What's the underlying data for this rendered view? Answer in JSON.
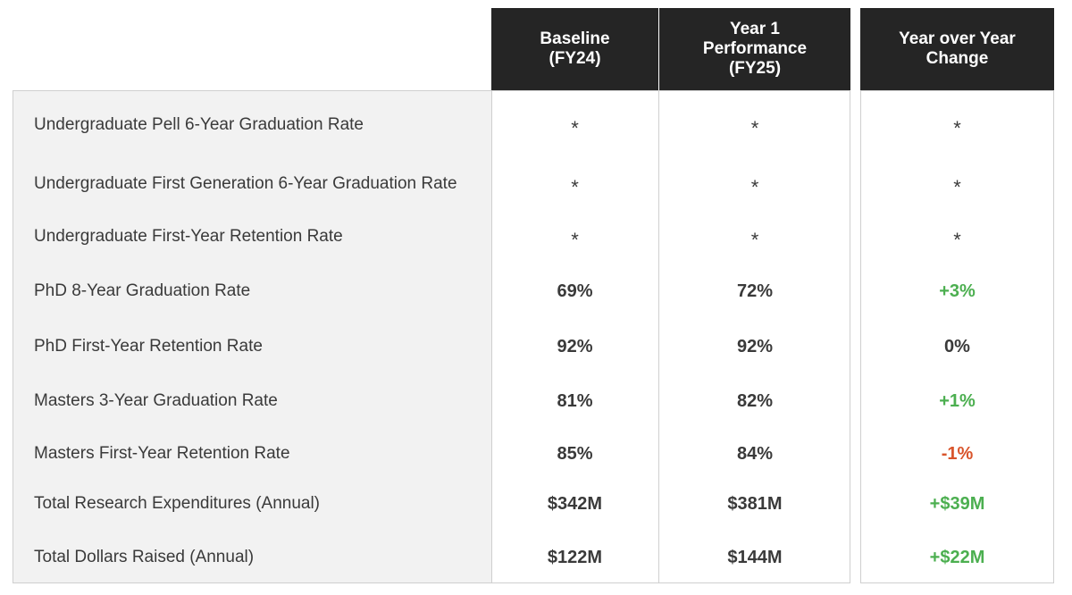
{
  "header": {
    "baseline": "Baseline\n(FY24)",
    "year1": "Year 1\nPerformance\n(FY25)",
    "yoy": "Year over Year\nChange"
  },
  "colors": {
    "header_bg": "#252525",
    "label_bg": "#f2f2f2",
    "positive": "#4caf50",
    "negative": "#d9542b"
  },
  "rows": [
    {
      "label": "Undergraduate Pell 6-Year Graduation Rate",
      "baseline": "*",
      "year1": "*",
      "change": "*",
      "trend": "none"
    },
    {
      "label": "Undergraduate First Generation 6-Year Graduation Rate",
      "baseline": "*",
      "year1": "*",
      "change": "*",
      "trend": "none"
    },
    {
      "label": "Undergraduate First-Year Retention Rate",
      "baseline": "*",
      "year1": "*",
      "change": "*",
      "trend": "none"
    },
    {
      "label": "PhD 8-Year Graduation Rate",
      "baseline": "69%",
      "year1": "72%",
      "change": "+3%",
      "trend": "up"
    },
    {
      "label": "PhD First-Year Retention Rate",
      "baseline": "92%",
      "year1": "92%",
      "change": "0%",
      "trend": "flat"
    },
    {
      "label": "Masters 3-Year Graduation Rate",
      "baseline": "81%",
      "year1": "82%",
      "change": "+1%",
      "trend": "up"
    },
    {
      "label": "Masters First-Year Retention Rate",
      "baseline": "85%",
      "year1": "84%",
      "change": "-1%",
      "trend": "down"
    },
    {
      "label": "Total Research Expenditures (Annual)",
      "baseline": "$342M",
      "year1": "$381M",
      "change": "+$39M",
      "trend": "up"
    },
    {
      "label": "Total Dollars Raised (Annual)",
      "baseline": "$122M",
      "year1": "$144M",
      "change": "+$22M",
      "trend": "up"
    }
  ]
}
